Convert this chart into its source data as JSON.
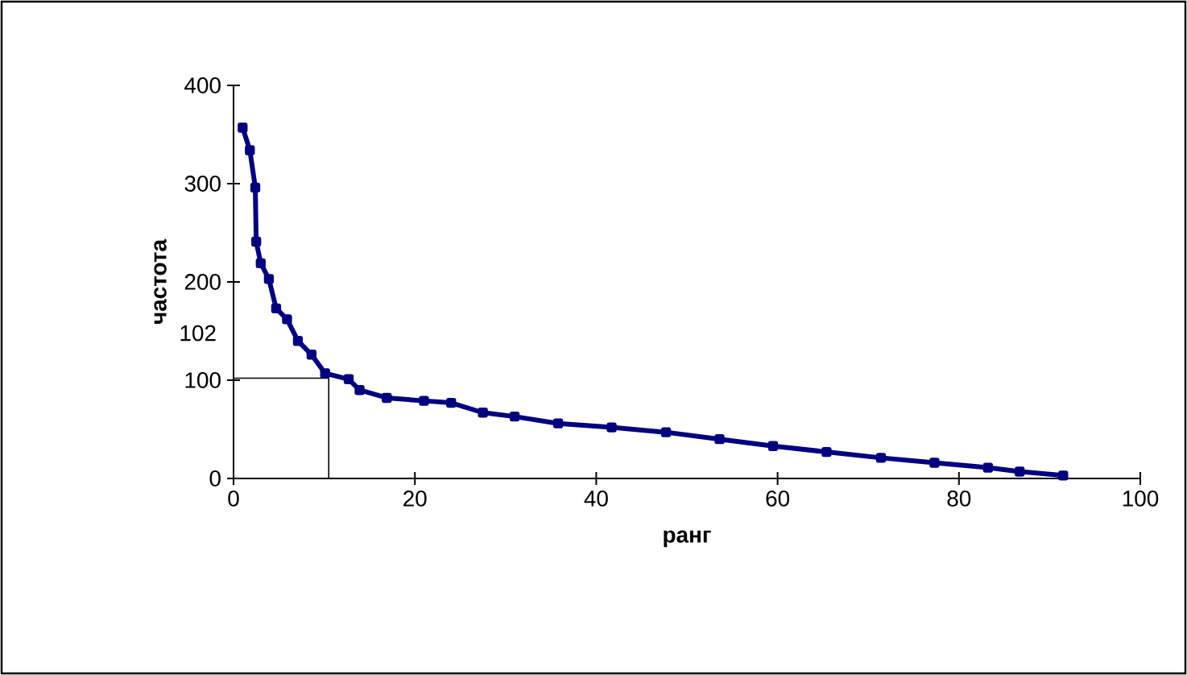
{
  "chart_data": {
    "type": "line",
    "xlabel": "ранг",
    "ylabel": "частота",
    "x": [
      1,
      1.8,
      2.4,
      2.5,
      3,
      3.9,
      4.7,
      5.9,
      7.1,
      8.6,
      10.1,
      12.7,
      13.9,
      16.9,
      21,
      24,
      27.5,
      31,
      35.8,
      41.7,
      47.7,
      53.6,
      59.5,
      65.4,
      71.4,
      77.3,
      83.2,
      86.7,
      91.5
    ],
    "series": [
      {
        "color": "#000080",
        "values": [
          357,
          334,
          296,
          241,
          219,
          203,
          173,
          162,
          140,
          126,
          107,
          101,
          90,
          82,
          79,
          77,
          67,
          63,
          56,
          52,
          47,
          40,
          33,
          27,
          21,
          16,
          11,
          7,
          3
        ]
      }
    ],
    "xlim": [
      0,
      100
    ],
    "ylim": [
      0,
      400
    ],
    "xticks": [
      0,
      20,
      40,
      60,
      80,
      100
    ],
    "yticks": [
      0,
      100,
      200,
      300,
      400
    ],
    "ref_lines": [
      {
        "axis": "y",
        "value": 102,
        "label": "102",
        "color": "#000000"
      },
      {
        "axis": "x",
        "value": 10.5,
        "color": "#000000"
      }
    ],
    "grid": false,
    "marker": "square",
    "line_style": "solid"
  }
}
